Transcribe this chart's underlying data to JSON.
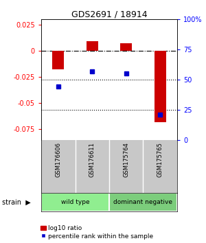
{
  "title": "GDS2691 / 18914",
  "samples": [
    "GSM176606",
    "GSM176611",
    "GSM175764",
    "GSM175765"
  ],
  "log10_ratio": [
    -0.018,
    0.009,
    0.007,
    -0.068
  ],
  "percentile_rank": [
    44,
    57,
    55,
    21
  ],
  "groups": [
    {
      "label": "wild type",
      "samples": [
        0,
        1
      ],
      "color": "#90EE90"
    },
    {
      "label": "dominant negative",
      "samples": [
        2,
        3
      ],
      "color": "#7CCD7C"
    }
  ],
  "bar_color": "#CC0000",
  "dot_color": "#0000CC",
  "ylim_left": [
    -0.085,
    0.03
  ],
  "ylim_right": [
    0,
    100
  ],
  "yticks_left": [
    0.025,
    0,
    -0.025,
    -0.05,
    -0.075
  ],
  "yticks_right": [
    100,
    75,
    50,
    25,
    0
  ],
  "group_label": "strain",
  "legend_bar_label": "log10 ratio",
  "legend_dot_label": "percentile rank within the sample",
  "background_color": "#ffffff"
}
